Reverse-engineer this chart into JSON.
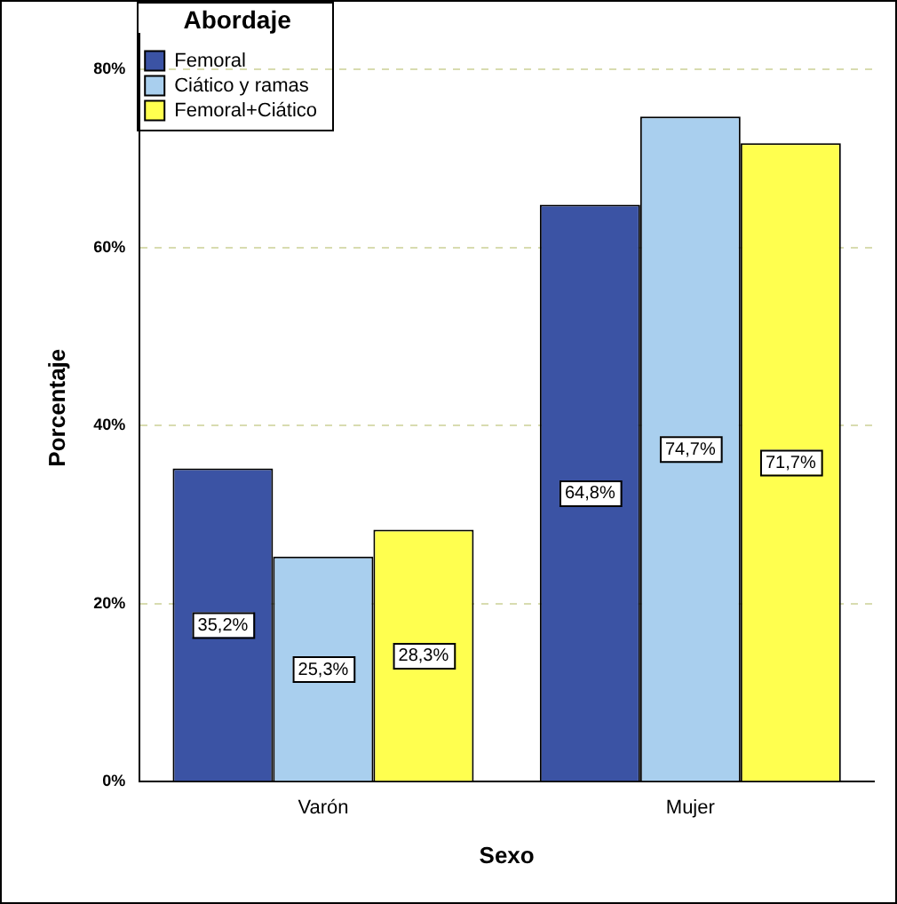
{
  "chart_data": {
    "type": "bar",
    "xlabel": "Sexo",
    "ylabel": "Porcentaje",
    "legend_title": "Abordaje",
    "categories": [
      "Varón",
      "Mujer"
    ],
    "series": [
      {
        "name": "Femoral",
        "color": "#3b53a4",
        "values": [
          35.2,
          64.8
        ],
        "value_labels": [
          "35,2%",
          "64,8%"
        ]
      },
      {
        "name": "Ciático y ramas",
        "color": "#a9cfee",
        "values": [
          25.3,
          74.7
        ],
        "value_labels": [
          "25,3%",
          "74,7%"
        ]
      },
      {
        "name": "Femoral+Ciático",
        "color": "#ffff4f",
        "values": [
          28.3,
          71.7
        ],
        "value_labels": [
          "28,3%",
          "71,7%"
        ]
      }
    ],
    "ylim": [
      0,
      84
    ],
    "yticks": [
      {
        "value": 0,
        "label": "0%"
      },
      {
        "value": 20,
        "label": "20%"
      },
      {
        "value": 40,
        "label": "40%"
      },
      {
        "value": 60,
        "label": "60%"
      },
      {
        "value": 80,
        "label": "80%"
      }
    ],
    "grid": "y",
    "legend": "top left"
  }
}
